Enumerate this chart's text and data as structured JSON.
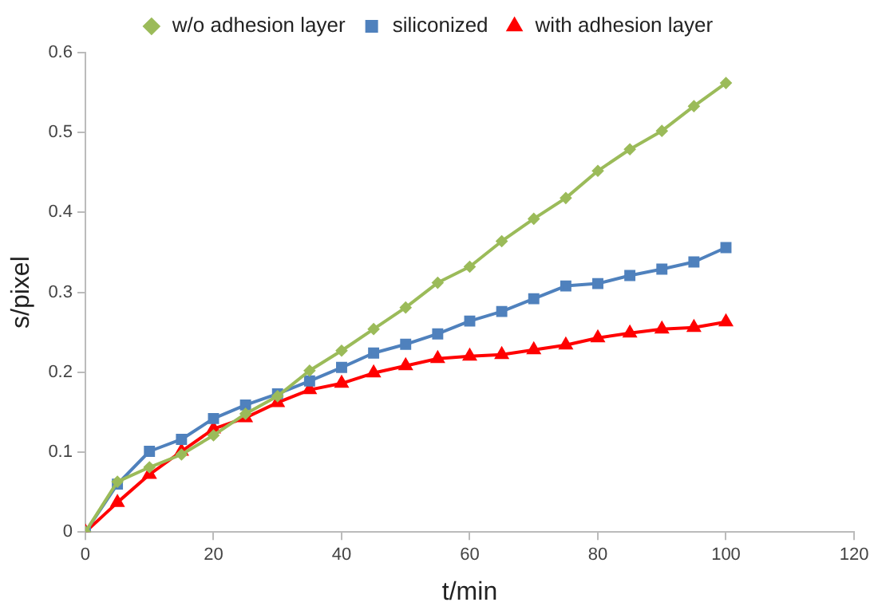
{
  "chart_data": {
    "type": "line",
    "xlabel": "t/min",
    "ylabel": "s/pixel",
    "x": [
      0,
      5,
      10,
      15,
      20,
      25,
      30,
      35,
      40,
      45,
      50,
      55,
      60,
      65,
      70,
      75,
      80,
      85,
      90,
      95,
      100
    ],
    "xlim": [
      0,
      120
    ],
    "xticks": [
      0,
      20,
      40,
      60,
      80,
      100,
      120
    ],
    "ylim": [
      0,
      0.6
    ],
    "yticks": [
      0,
      0.1,
      0.2,
      0.3,
      0.4,
      0.5,
      0.6
    ],
    "grid": false,
    "legend": "top",
    "line_style": "solid",
    "series": [
      {
        "name": "w/o adhesion layer",
        "color": "#9bbb59",
        "marker": "diamond",
        "values": [
          0,
          0.063,
          0.081,
          0.097,
          0.121,
          0.148,
          0.17,
          0.202,
          0.227,
          0.254,
          0.281,
          0.312,
          0.332,
          0.364,
          0.392,
          0.418,
          0.452,
          0.479,
          0.502,
          0.533,
          0.562
        ]
      },
      {
        "name": "siliconized",
        "color": "#4f81bd",
        "marker": "square",
        "values": [
          0,
          0.06,
          0.101,
          0.116,
          0.142,
          0.159,
          0.173,
          0.189,
          0.206,
          0.224,
          0.235,
          0.248,
          0.264,
          0.276,
          0.292,
          0.308,
          0.311,
          0.321,
          0.329,
          0.338,
          0.356
        ]
      },
      {
        "name": "with adhesion layer",
        "color": "#ff0000",
        "marker": "triangle",
        "values": [
          0,
          0.037,
          0.072,
          0.101,
          0.129,
          0.143,
          0.162,
          0.178,
          0.186,
          0.199,
          0.208,
          0.217,
          0.22,
          0.222,
          0.228,
          0.234,
          0.243,
          0.249,
          0.254,
          0.256,
          0.263
        ]
      }
    ]
  }
}
